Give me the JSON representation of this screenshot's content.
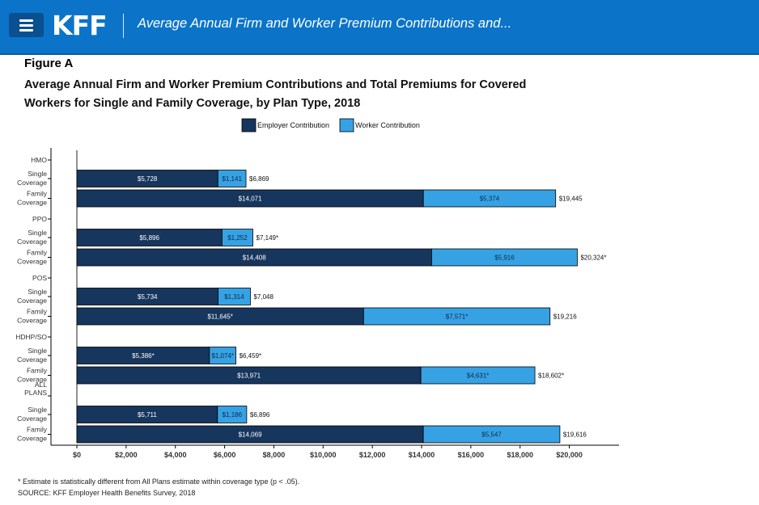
{
  "header": {
    "logo": "KFF",
    "title": "Average Annual Firm and Worker Premium Contributions and..."
  },
  "figure_label": "Figure A",
  "chart_data": {
    "type": "bar",
    "orientation": "horizontal",
    "stacked": true,
    "title": "Average Annual Firm and Worker Premium Contributions and Total Premiums for Covered Workers for Single and Family Coverage, by Plan Type, 2018",
    "legend": [
      "Employer Contribution",
      "Worker Contribution"
    ],
    "colors": {
      "employer": "#17365d",
      "worker": "#36a2e4"
    },
    "xlim": [
      0,
      22000
    ],
    "x_ticks": [
      0,
      2000,
      4000,
      6000,
      8000,
      10000,
      12000,
      14000,
      16000,
      18000,
      20000
    ],
    "x_tick_labels": [
      "$0",
      "$2,000",
      "$4,000",
      "$6,000",
      "$8,000",
      "$10,000",
      "$12,000",
      "$14,000",
      "$16,000",
      "$18,000",
      "$20,000"
    ],
    "groups": [
      {
        "label": "HMO",
        "rows": [
          {
            "label": "Single Coverage",
            "employer": 5728,
            "worker": 1141,
            "total": 6869,
            "employer_label": "$5,728",
            "worker_label": "$1,141",
            "total_label": "$6,869"
          },
          {
            "label": "Family Coverage",
            "employer": 14071,
            "worker": 5374,
            "total": 19445,
            "employer_label": "$14,071",
            "worker_label": "$5,374",
            "total_label": "$19,445"
          }
        ]
      },
      {
        "label": "PPO",
        "rows": [
          {
            "label": "Single Coverage",
            "employer": 5896,
            "worker": 1252,
            "total": 7149,
            "employer_label": "$5,896",
            "worker_label": "$1,252",
            "total_label": "$7,149*"
          },
          {
            "label": "Family Coverage",
            "employer": 14408,
            "worker": 5916,
            "total": 20324,
            "employer_label": "$14,408",
            "worker_label": "$5,916",
            "total_label": "$20,324*"
          }
        ]
      },
      {
        "label": "POS",
        "rows": [
          {
            "label": "Single Coverage",
            "employer": 5734,
            "worker": 1314,
            "total": 7048,
            "employer_label": "$5,734",
            "worker_label": "$1,314",
            "total_label": "$7,048"
          },
          {
            "label": "Family Coverage",
            "employer": 11645,
            "worker": 7571,
            "total": 19216,
            "employer_label": "$11,645*",
            "worker_label": "$7,571*",
            "total_label": "$19,216"
          }
        ]
      },
      {
        "label": "HDHP/SO",
        "rows": [
          {
            "label": "Single Coverage",
            "employer": 5386,
            "worker": 1074,
            "total": 6459,
            "employer_label": "$5,386*",
            "worker_label": "$1,074*",
            "total_label": "$6,459*"
          },
          {
            "label": "Family Coverage",
            "employer": 13971,
            "worker": 4631,
            "total": 18602,
            "employer_label": "$13,971",
            "worker_label": "$4,631*",
            "total_label": "$18,602*"
          }
        ]
      },
      {
        "label": "ALL PLANS",
        "rows": [
          {
            "label": "Single Coverage",
            "employer": 5711,
            "worker": 1186,
            "total": 6896,
            "employer_label": "$5,711",
            "worker_label": "$1,186",
            "total_label": "$6,896"
          },
          {
            "label": "Family Coverage",
            "employer": 14069,
            "worker": 5547,
            "total": 19616,
            "employer_label": "$14,069",
            "worker_label": "$5,547",
            "total_label": "$19,616"
          }
        ]
      }
    ]
  },
  "footnote": "* Estimate is statistically different from All Plans estimate within coverage type (p < .05).",
  "source": "SOURCE: KFF Employer Health Benefits Survey, 2018"
}
